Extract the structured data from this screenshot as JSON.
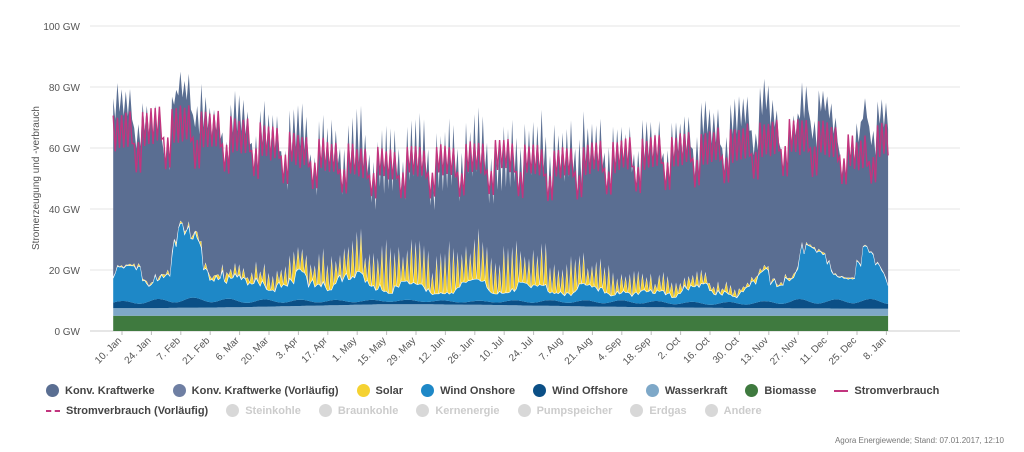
{
  "chart_data": {
    "type": "area",
    "ylabel": "Stromerzeugung und -verbrauch",
    "y_ticks": [
      "0 GW",
      "20 GW",
      "40 GW",
      "60 GW",
      "80 GW",
      "100 GW"
    ],
    "ylim": [
      0,
      100
    ],
    "x_ticks": [
      "10. Jan",
      "24. Jan",
      "7. Feb",
      "21. Feb",
      "6. Mar",
      "20. Mar",
      "3. Apr",
      "17. Apr",
      "1. May",
      "15. May",
      "29. May",
      "12. Jun",
      "26. Jun",
      "10. Jul",
      "24. Jul",
      "7. Aug",
      "21. Aug",
      "4. Sep",
      "18. Sep",
      "2. Oct",
      "16. Oct",
      "30. Oct",
      "13. Nov",
      "27. Nov",
      "11. Dec",
      "25. Dec",
      "8. Jan"
    ],
    "x_unit": "weeks",
    "x_range": [
      -0.3,
      26.05
    ],
    "weekly": {
      "biomasse": [
        5.0,
        5.0,
        5.0,
        5.0,
        5.0,
        5.0,
        5.0,
        5.0,
        5.0,
        5.0,
        5.0,
        5.0,
        5.0,
        5.0,
        5.0,
        5.0,
        5.0,
        5.0,
        5.0,
        5.0,
        5.0,
        5.0,
        5.0,
        5.0,
        5.0,
        5.0,
        5.0
      ],
      "wasserkraft": [
        2.5,
        2.5,
        2.6,
        2.7,
        2.8,
        3.0,
        3.2,
        3.4,
        3.6,
        3.8,
        3.8,
        3.7,
        3.6,
        3.5,
        3.3,
        3.2,
        3.0,
        2.9,
        2.8,
        2.7,
        2.6,
        2.5,
        2.5,
        2.4,
        2.4,
        2.3,
        2.3
      ],
      "wind_offshore": [
        1.8,
        2.2,
        2.6,
        2.5,
        2.0,
        1.8,
        1.6,
        1.4,
        1.2,
        1.1,
        1.1,
        1.0,
        1.0,
        1.2,
        1.4,
        1.5,
        1.6,
        1.7,
        1.6,
        1.5,
        1.4,
        1.6,
        1.8,
        2.4,
        2.2,
        2.6,
        2.3
      ],
      "wind_onshore": [
        8,
        9,
        18,
        12,
        6,
        5,
        7,
        6,
        7,
        5,
        4,
        4,
        5,
        5,
        4,
        4,
        4,
        3,
        3,
        4,
        5,
        3,
        8,
        14,
        11,
        15,
        6
      ],
      "solar": [
        0.5,
        0.8,
        1.2,
        1.8,
        3,
        5,
        7,
        8,
        10,
        12,
        11,
        12,
        11,
        12,
        10,
        9,
        8,
        6,
        5,
        4,
        3,
        2,
        1.2,
        0.8,
        0.5,
        0.4,
        0.4
      ],
      "konv_kraftwerke": [
        58,
        56,
        48,
        54,
        55,
        52,
        46,
        44,
        40,
        38,
        41,
        40,
        41,
        40,
        43,
        45,
        46,
        48,
        50,
        52,
        56,
        62,
        59,
        50,
        54,
        44,
        58
      ],
      "stromverbrauch": [
        68,
        70,
        71,
        69,
        67,
        65,
        62,
        60,
        58,
        57,
        58,
        58,
        59,
        60,
        58,
        57,
        59,
        60,
        61,
        62,
        63,
        64,
        66,
        67,
        66,
        60,
        66
      ]
    },
    "series": [
      {
        "name": "Biomasse",
        "key": "biomasse",
        "color": "#3f7a3f"
      },
      {
        "name": "Wasserkraft",
        "key": "wasserkraft",
        "color": "#7ea8c8"
      },
      {
        "name": "Wind Offshore",
        "key": "wind_offshore",
        "color": "#0b4f86"
      },
      {
        "name": "Wind Onshore",
        "key": "wind_onshore",
        "color": "#1e88c7"
      },
      {
        "name": "Solar",
        "key": "solar",
        "color": "#f5d232"
      },
      {
        "name": "Konv. Kraftwerke",
        "key": "konv_kraftwerke",
        "color": "#5a6e92"
      },
      {
        "name": "Stromverbrauch",
        "key": "stromverbrauch",
        "color": "#c2357e"
      }
    ]
  },
  "legend": {
    "row1": [
      {
        "label": "Konv. Kraftwerke",
        "color": "#5a6e92",
        "symbol": "dot"
      },
      {
        "label": "Konv. Kraftwerke (Vorläufig)",
        "color": "#6f7fa3",
        "symbol": "dot"
      },
      {
        "label": "Solar",
        "color": "#f5d232",
        "symbol": "dot"
      },
      {
        "label": "Wind Onshore",
        "color": "#1e88c7",
        "symbol": "dot"
      },
      {
        "label": "Wind Offshore",
        "color": "#0b4f86",
        "symbol": "dot"
      },
      {
        "label": "Wasserkraft",
        "color": "#7ea8c8",
        "symbol": "dot"
      },
      {
        "label": "Biomasse",
        "color": "#3f7a3f",
        "symbol": "dot"
      },
      {
        "label": "Stromverbrauch",
        "color": "#c2357e",
        "symbol": "line"
      }
    ],
    "row2": [
      {
        "label": "Stromverbrauch (Vorläufig)",
        "color": "#c2357e",
        "symbol": "dash"
      },
      {
        "label": "Steinkohle",
        "color": "#d8d8d8",
        "symbol": "dot",
        "off": true
      },
      {
        "label": "Braunkohle",
        "color": "#d8d8d8",
        "symbol": "dot",
        "off": true
      },
      {
        "label": "Kernenergie",
        "color": "#d8d8d8",
        "symbol": "dot",
        "off": true
      },
      {
        "label": "Pumpspeicher",
        "color": "#d8d8d8",
        "symbol": "dot",
        "off": true
      },
      {
        "label": "Erdgas",
        "color": "#d8d8d8",
        "symbol": "dot",
        "off": true
      },
      {
        "label": "Andere",
        "color": "#d8d8d8",
        "symbol": "dot",
        "off": true
      }
    ]
  },
  "credit": "Agora Energiewende; Stand: 07.01.2017, 12:10"
}
